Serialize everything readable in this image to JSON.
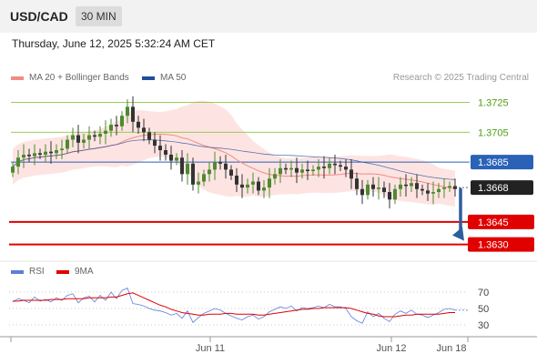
{
  "header": {
    "symbol": "USD/CAD",
    "timeframe": "30 MIN"
  },
  "datetime": "Thursday, June 12, 2025 5:32:24 AM CET",
  "legend": {
    "ma20": {
      "label": "MA 20 + Bollinger Bands",
      "color": "#f28b82"
    },
    "ma50": {
      "label": "MA 50",
      "color": "#1f4e9c"
    }
  },
  "credit": "Research © 2025 Trading Central",
  "rsi_legend": {
    "rsi": {
      "label": "RSI",
      "color": "#5b7fd9"
    },
    "ma9": {
      "label": "9MA",
      "color": "#e00000"
    }
  },
  "chart_data": [
    {
      "type": "candlestick",
      "ylim": [
        1.362,
        1.3735
      ],
      "levels": [
        {
          "value": 1.3725,
          "label": "1.3725",
          "color": "#8cc63f",
          "style": "thin"
        },
        {
          "value": 1.3705,
          "label": "1.3705",
          "color": "#8cc63f",
          "style": "thin"
        },
        {
          "value": 1.3685,
          "label": "1.3685",
          "color": "#2962b7",
          "style": "tag"
        },
        {
          "value": 1.3668,
          "label": "1.3668",
          "color": "#222222",
          "style": "current"
        },
        {
          "value": 1.3645,
          "label": "1.3645",
          "color": "#e00000",
          "style": "thick"
        },
        {
          "value": 1.363,
          "label": "1.3630",
          "color": "#e00000",
          "style": "thick"
        }
      ],
      "closes": [
        1.3682,
        1.3688,
        1.369,
        1.3689,
        1.3691,
        1.369,
        1.3692,
        1.3691,
        1.3693,
        1.3694,
        1.37,
        1.3703,
        1.3698,
        1.37,
        1.3703,
        1.3702,
        1.3704,
        1.3706,
        1.371,
        1.3709,
        1.3716,
        1.3722,
        1.3712,
        1.3708,
        1.3705,
        1.37,
        1.3696,
        1.3693,
        1.369,
        1.3686,
        1.3688,
        1.3677,
        1.3684,
        1.367,
        1.3672,
        1.3677,
        1.368,
        1.3685,
        1.3684,
        1.368,
        1.3676,
        1.367,
        1.3668,
        1.367,
        1.3672,
        1.3666,
        1.3668,
        1.3674,
        1.3677,
        1.3681,
        1.368,
        1.3681,
        1.3678,
        1.368,
        1.3679,
        1.368,
        1.3682,
        1.3681,
        1.3684,
        1.3683,
        1.3682,
        1.368,
        1.3674,
        1.3667,
        1.3663,
        1.367,
        1.3667,
        1.3668,
        1.3665,
        1.366,
        1.3667,
        1.367,
        1.3669,
        1.3671,
        1.3667,
        1.3666,
        1.3664,
        1.3665,
        1.3667,
        1.3668,
        1.3669,
        1.3667
      ],
      "forecast_arrow": {
        "from": 1.3668,
        "to": 1.363
      },
      "x_ticks": [
        "Jun 11",
        "Jun 12",
        "Jun 18"
      ]
    },
    {
      "type": "line",
      "name": "RSI",
      "ylim": [
        20,
        80
      ],
      "y_ticks": [
        70,
        50,
        30
      ],
      "series": [
        {
          "name": "RSI",
          "color": "#5b7fd9",
          "values": [
            58,
            62,
            60,
            57,
            64,
            59,
            61,
            58,
            63,
            60,
            66,
            68,
            57,
            63,
            65,
            58,
            66,
            60,
            70,
            62,
            72,
            75,
            56,
            55,
            53,
            50,
            48,
            47,
            45,
            42,
            44,
            38,
            47,
            33,
            39,
            44,
            47,
            50,
            48,
            44,
            41,
            38,
            36,
            40,
            42,
            37,
            40,
            46,
            49,
            52,
            50,
            53,
            47,
            51,
            50,
            51,
            53,
            51,
            55,
            52,
            52,
            50,
            40,
            35,
            32,
            46,
            40,
            44,
            38,
            34,
            43,
            47,
            44,
            48,
            43,
            42,
            39,
            42,
            45,
            49,
            50,
            48
          ]
        },
        {
          "name": "9MA",
          "color": "#e00000",
          "values": [
            59,
            59,
            60,
            60,
            60,
            60,
            60,
            61,
            61,
            61,
            62,
            62,
            62,
            62,
            63,
            63,
            63,
            63,
            64,
            64,
            66,
            68,
            69,
            66,
            63,
            60,
            57,
            54,
            52,
            49,
            47,
            45,
            44,
            43,
            42,
            42,
            43,
            43,
            43,
            44,
            44,
            43,
            43,
            43,
            43,
            42,
            42,
            43,
            44,
            45,
            46,
            47,
            48,
            49,
            49,
            50,
            50,
            51,
            51,
            51,
            51,
            51,
            50,
            48,
            46,
            44,
            43,
            41,
            40,
            40,
            40,
            41,
            42,
            42,
            43,
            43,
            43,
            43,
            43,
            44,
            45,
            45
          ]
        }
      ]
    }
  ]
}
